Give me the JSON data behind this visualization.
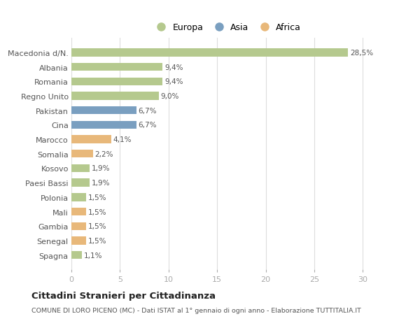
{
  "categories": [
    "Macedonia d/N.",
    "Albania",
    "Romania",
    "Regno Unito",
    "Pakistan",
    "Cina",
    "Marocco",
    "Somalia",
    "Kosovo",
    "Paesi Bassi",
    "Polonia",
    "Mali",
    "Gambia",
    "Senegal",
    "Spagna"
  ],
  "values": [
    28.5,
    9.4,
    9.4,
    9.0,
    6.7,
    6.7,
    4.1,
    2.2,
    1.9,
    1.9,
    1.5,
    1.5,
    1.5,
    1.5,
    1.1
  ],
  "labels": [
    "28,5%",
    "9,4%",
    "9,4%",
    "9,0%",
    "6,7%",
    "6,7%",
    "4,1%",
    "2,2%",
    "1,9%",
    "1,9%",
    "1,5%",
    "1,5%",
    "1,5%",
    "1,5%",
    "1,1%"
  ],
  "continents": [
    "Europa",
    "Europa",
    "Europa",
    "Europa",
    "Asia",
    "Asia",
    "Africa",
    "Africa",
    "Europa",
    "Europa",
    "Europa",
    "Africa",
    "Africa",
    "Africa",
    "Europa"
  ],
  "colors": {
    "Europa": "#b5c98e",
    "Asia": "#7a9fc0",
    "Africa": "#e8b87a"
  },
  "title": "Cittadini Stranieri per Cittadinanza",
  "subtitle": "COMUNE DI LORO PICENO (MC) - Dati ISTAT al 1° gennaio di ogni anno - Elaborazione TUTTITALIA.IT",
  "xlim": [
    0,
    32
  ],
  "xticks": [
    0,
    5,
    10,
    15,
    20,
    25,
    30
  ],
  "background_color": "#ffffff",
  "grid_color": "#dddddd",
  "bar_height": 0.55,
  "label_fontsize": 7.5,
  "ytick_fontsize": 8,
  "xtick_fontsize": 8
}
